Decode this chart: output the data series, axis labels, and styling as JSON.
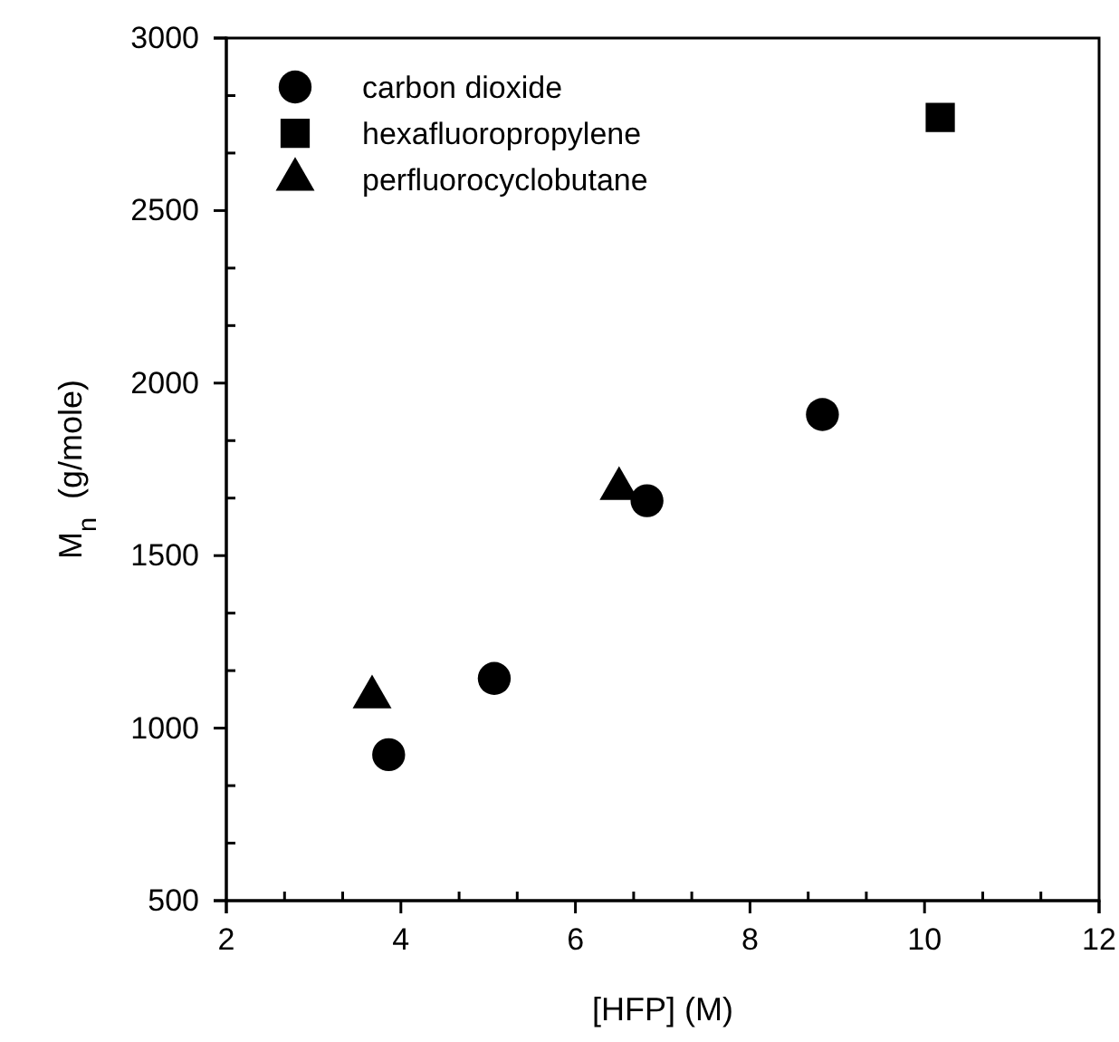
{
  "chart_data": {
    "type": "scatter",
    "xlabel": "[HFP] (M)",
    "ylabel": "M$_{n}$  (g/mole)",
    "xlim": [
      2,
      12
    ],
    "xticks": [
      2,
      {
        "value": 2.667,
        "label": null
      },
      {
        "value": 3.333,
        "label": null
      },
      4,
      {
        "value": 4.667,
        "label": null
      },
      {
        "value": 5.333,
        "label": null
      },
      6,
      {
        "value": 6.667,
        "label": null
      },
      {
        "value": 7.333,
        "label": null
      },
      8,
      {
        "value": 8.667,
        "label": null
      },
      {
        "value": 9.333,
        "label": null
      },
      10,
      {
        "value": 10.667,
        "label": null
      },
      {
        "value": 11.333,
        "label": null
      },
      12
    ],
    "ylim": [
      500,
      3000
    ],
    "yticks": [
      500,
      {
        "value": 666.7,
        "label": null
      },
      {
        "value": 833.3,
        "label": null
      },
      1000,
      {
        "value": 1166.7,
        "label": null
      },
      {
        "value": 1333.3,
        "label": null
      },
      1500,
      {
        "value": 1666.7,
        "label": null
      },
      {
        "value": 1833.3,
        "label": null
      },
      2000,
      {
        "value": 2166.7,
        "label": null
      },
      {
        "value": 2333.3,
        "label": null
      },
      2500,
      {
        "value": 2666.7,
        "label": null
      },
      {
        "value": 2833.3,
        "label": null
      },
      3000
    ],
    "grid": false,
    "legend": "top left",
    "series": [
      {
        "name": "carbon dioxide",
        "color": "#000000",
        "marker": "circle",
        "x": [
          3.86,
          5.07,
          6.82,
          8.83
        ],
        "values": [
          923,
          1144,
          1659,
          1909
        ]
      },
      {
        "name": "hexafluoropropylene",
        "color": "#000000",
        "marker": "square",
        "x": [
          10.18
        ],
        "values": [
          2770
        ]
      },
      {
        "name": "perfluorocyclobutane",
        "color": "#000000",
        "marker": "triangle",
        "x": [
          3.67,
          6.5
        ],
        "values": [
          1090,
          1694
        ]
      }
    ]
  }
}
